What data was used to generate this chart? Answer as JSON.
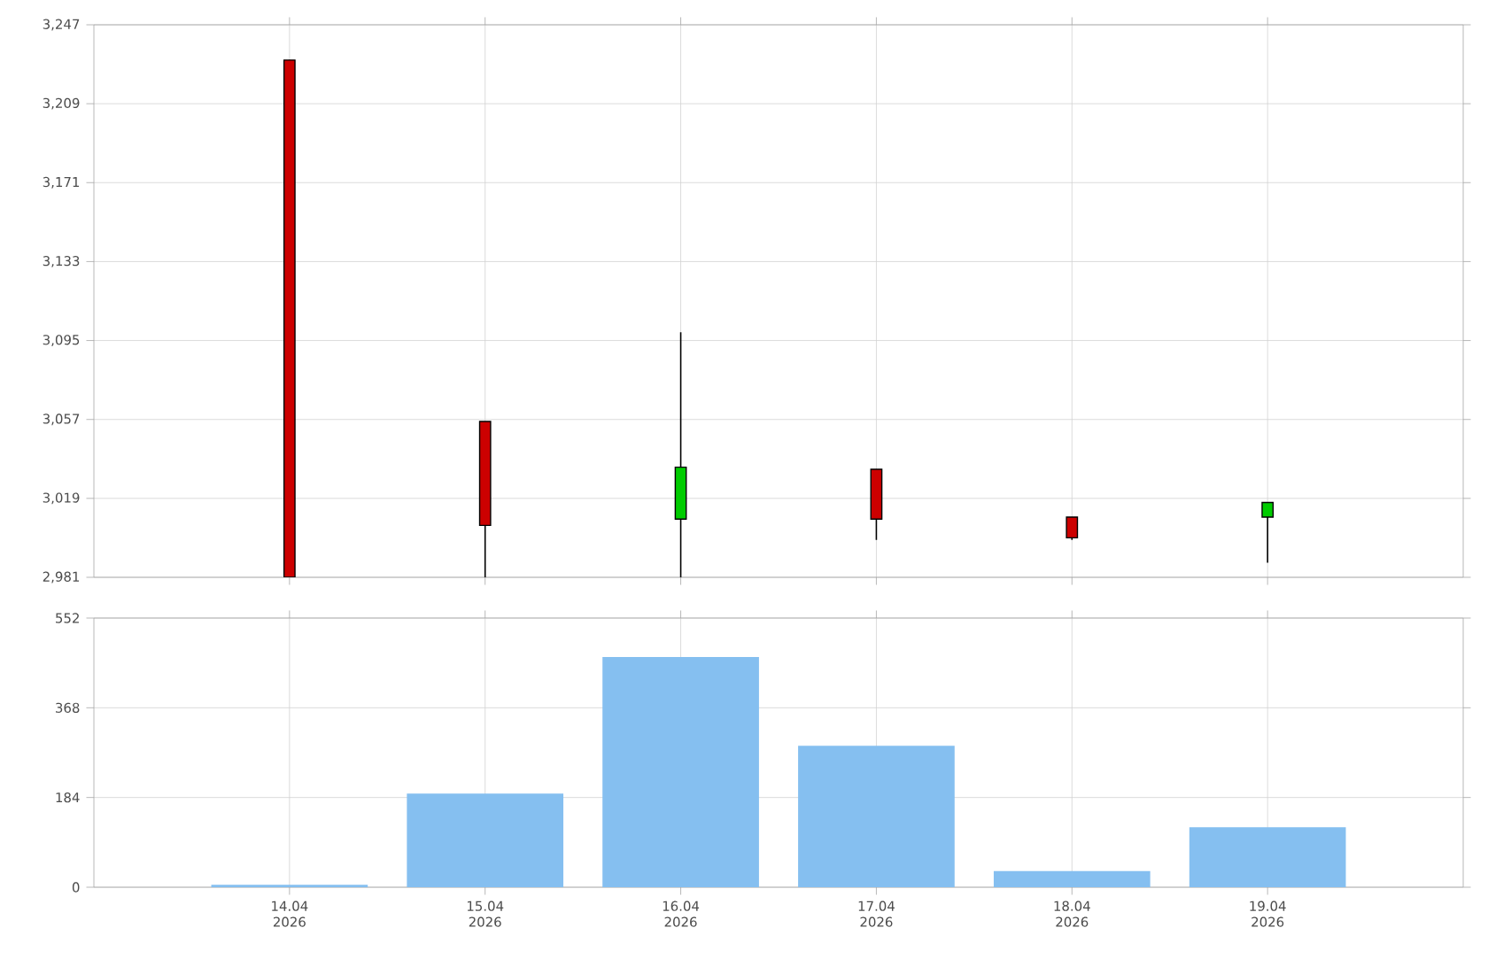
{
  "chart_data": [
    {
      "type": "candlestick",
      "categories": [
        null,
        null,
        null,
        null,
        null,
        null
      ],
      "ohlc": [
        [
          3230,
          3230,
          2981,
          2981
        ],
        [
          3056,
          3056,
          2981,
          3006
        ],
        [
          3009,
          3099,
          2981,
          3034
        ],
        [
          3033,
          3033,
          2999,
          3009
        ],
        [
          3010,
          3010,
          2999,
          3000
        ],
        [
          3010,
          3017,
          2988,
          3017
        ]
      ],
      "colors": [
        "#cc0000",
        "#cc0000",
        "#00cc00",
        "#cc0000",
        "#cc0000",
        "#00cc00"
      ],
      "ylim": [
        2981,
        3247
      ],
      "yticks": [
        {
          "value": 2981,
          "label": "2,981"
        },
        {
          "value": 3019,
          "label": "3,019"
        },
        {
          "value": 3057,
          "label": "3,057"
        },
        {
          "value": 3095,
          "label": "3,095"
        },
        {
          "value": 3133,
          "label": "3,133"
        },
        {
          "value": 3171,
          "label": "3,171"
        },
        {
          "value": 3209,
          "label": "3,209"
        },
        {
          "value": 3247,
          "label": "3,247"
        }
      ],
      "grid": true,
      "tick_labels": "y"
    },
    {
      "type": "bar",
      "categories": [
        "14.04 2026",
        "15.04 2026",
        "16.04 2026",
        "17.04 2026",
        "18.04 2026",
        "19.04 2026"
      ],
      "values": [
        5,
        192,
        472,
        290,
        33,
        123
      ],
      "color": "#85bff0",
      "ylim": [
        0,
        552
      ],
      "yticks": [
        0,
        184,
        368,
        552
      ],
      "grid": true
    }
  ]
}
